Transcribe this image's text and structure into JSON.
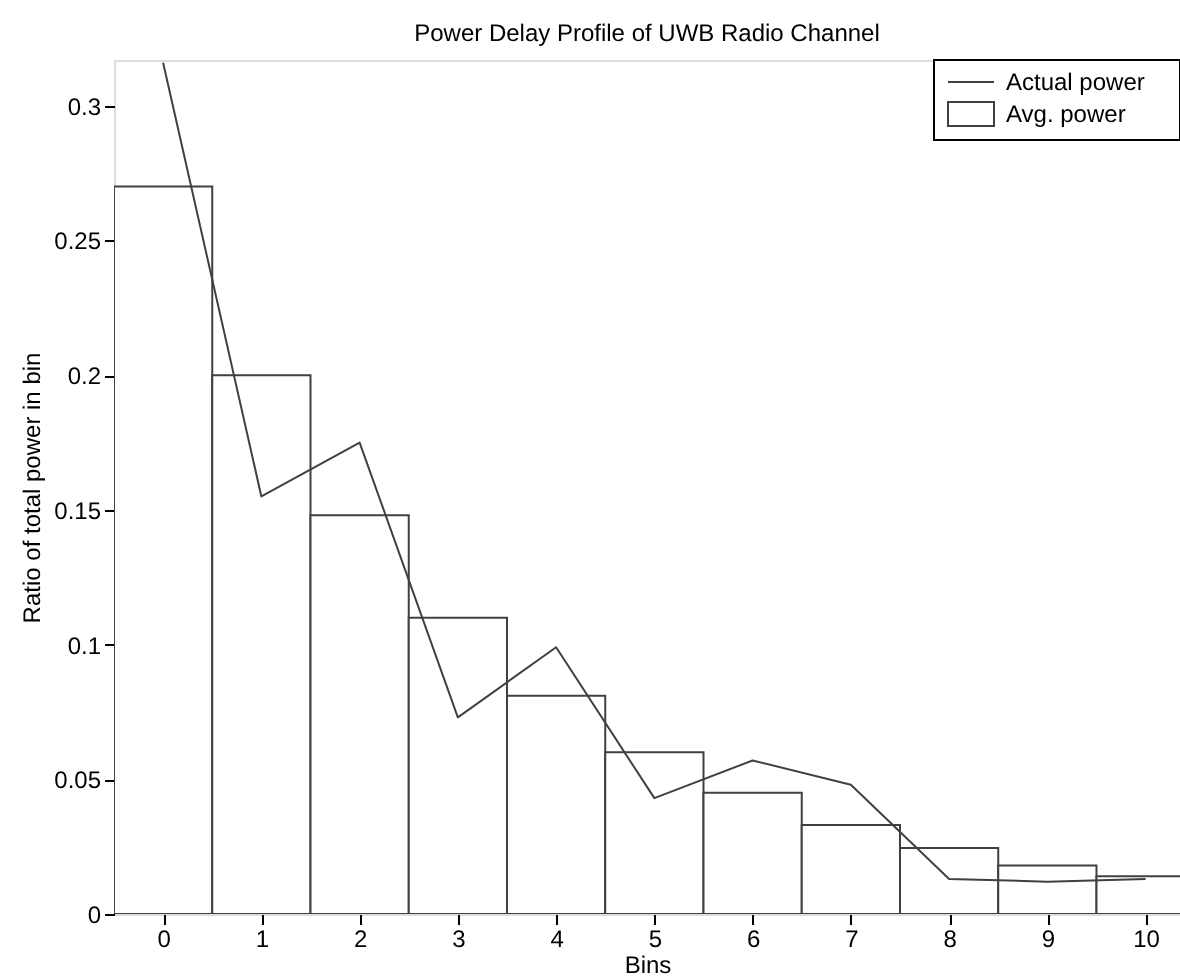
{
  "chart_data": {
    "type": "bar",
    "title": "Power Delay Profile of UWB Radio Channel",
    "xlabel": "Bins",
    "ylabel": "Ratio of total power in bin",
    "x": [
      0,
      1,
      2,
      3,
      4,
      5,
      6,
      7,
      8,
      9,
      10
    ],
    "series": [
      {
        "name": "Actual power",
        "type": "line",
        "color": "#404040",
        "values": [
          0.316,
          0.155,
          0.175,
          0.073,
          0.099,
          0.043,
          0.057,
          0.048,
          0.013,
          0.012,
          0.013
        ]
      },
      {
        "name": "Avg. power",
        "color": "#404040",
        "values": [
          0.27,
          0.2,
          0.148,
          0.11,
          0.081,
          0.06,
          0.045,
          0.033,
          0.0245,
          0.018,
          0.014
        ]
      }
    ],
    "xlim": [
      -0.5,
      10.35
    ],
    "xticks": [
      0,
      1,
      2,
      3,
      4,
      5,
      6,
      7,
      8,
      9,
      10
    ],
    "ylim": [
      0,
      0.317
    ],
    "yticks": [
      0,
      0.05,
      0.1,
      0.15,
      0.2,
      0.25,
      0.3
    ],
    "grid": false,
    "legend": "top right"
  }
}
